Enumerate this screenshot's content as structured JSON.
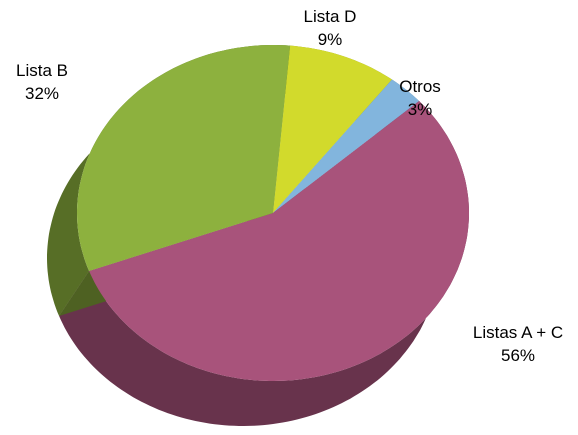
{
  "chart_data": {
    "type": "pie",
    "categories": [
      "Lista D",
      "Otros",
      "Listas A + C",
      "Lista B"
    ],
    "values": [
      9,
      3,
      56,
      32
    ],
    "value_labels": [
      "9%",
      "3%",
      "56%",
      "32%"
    ],
    "colors": [
      "#d2da2c",
      "#82b5dd",
      "#a8537b",
      "#8db13e"
    ]
  }
}
